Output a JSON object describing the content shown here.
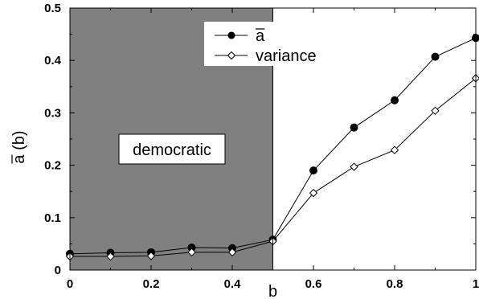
{
  "chart_data": {
    "type": "line",
    "title": "",
    "xlabel": "b",
    "ylabel": "a (b)",
    "ylabel_overline": true,
    "xlim": [
      0,
      1
    ],
    "ylim": [
      0,
      0.5
    ],
    "x_ticks": [
      "0",
      "0.2",
      "0.4",
      "0.6",
      "0.8",
      "1"
    ],
    "y_ticks": [
      "0",
      "0.1",
      "0.2",
      "0.3",
      "0.4",
      "0.5"
    ],
    "grid": false,
    "legend_position": "top-center",
    "shaded_region": {
      "x_range": [
        0,
        0.5
      ],
      "label": "democratic",
      "color": "#808080"
    },
    "x": [
      0,
      0.1,
      0.2,
      0.3,
      0.4,
      0.5,
      0.6,
      0.7,
      0.8,
      0.9,
      1.0
    ],
    "series": [
      {
        "name": "a",
        "name_overline": true,
        "marker": "filled-circle",
        "values": [
          0.031,
          0.033,
          0.034,
          0.043,
          0.042,
          0.058,
          0.19,
          0.272,
          0.324,
          0.407,
          0.443
        ]
      },
      {
        "name": "variance",
        "marker": "open-diamond",
        "values": [
          0.026,
          0.026,
          0.027,
          0.034,
          0.034,
          0.055,
          0.147,
          0.197,
          0.229,
          0.304,
          0.366
        ]
      }
    ]
  }
}
